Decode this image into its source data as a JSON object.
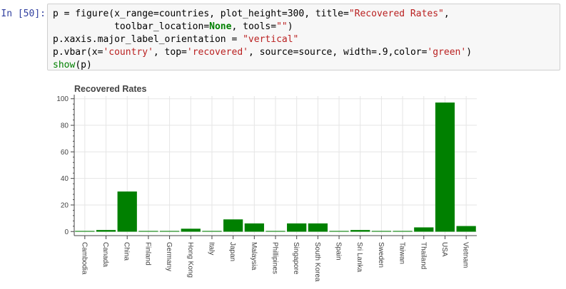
{
  "prompt": "In [50]:",
  "code": {
    "line1": {
      "a": "p = figure(x_range=countries, plot_height=300, title=",
      "b": "\"Recovered Rates\"",
      "c": ","
    },
    "line2": {
      "a": "           toolbar_location=",
      "b": "None",
      "c": ", tools=",
      "d": "\"\"",
      "e": ")"
    },
    "line3": {
      "a": "p.xaxis.major_label_orientation = ",
      "b": "\"vertical\""
    },
    "line4": {
      "a": "p.vbar(x=",
      "b": "'country'",
      "c": ", top=",
      "d": "'recovered'",
      "e": ", source=source, width=.9,color=",
      "f": "'green'",
      "g": ")"
    },
    "line5": {
      "a": "show",
      "b": "(p)"
    }
  },
  "chart_data": {
    "type": "bar",
    "title": "Recovered Rates",
    "categories": [
      "Cambodia",
      "Canada",
      "China",
      "Finland",
      "Germany",
      "Hong Kong",
      "Italy",
      "Japan",
      "Malaysia",
      "Phillipines",
      "Singapore",
      "South Korea",
      "Spain",
      "Sri Lanka",
      "Sweden",
      "Taiwan",
      "Thailand",
      "USA",
      "Vietnam"
    ],
    "values": [
      0,
      1,
      30,
      0,
      0,
      2,
      0,
      9,
      6,
      0,
      6,
      6,
      0,
      1,
      0,
      0,
      3,
      97,
      4
    ],
    "yticks": [
      0,
      20,
      40,
      60,
      80,
      100
    ],
    "ylim": [
      -2,
      102
    ],
    "bar_width": 0.9,
    "bar_color": "#008000",
    "xlabel": "",
    "ylabel": "",
    "grid": true,
    "x_label_orientation": "vertical"
  }
}
